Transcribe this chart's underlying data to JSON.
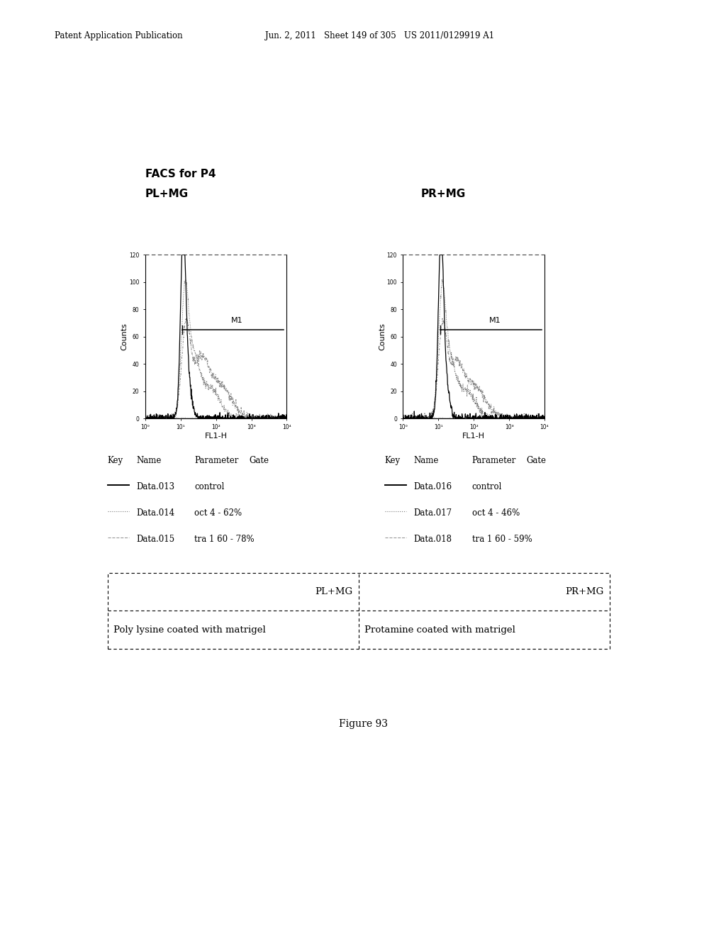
{
  "header_left": "Patent Application Publication",
  "header_mid": "Jun. 2, 2011   Sheet 149 of 305   US 2011/0129919 A1",
  "title_facs": "FACS for P4",
  "subtitle_left": "PL+MG",
  "subtitle_right": "PR+MG",
  "xlabel": "FL1-H",
  "ylabel": "Counts",
  "yticks": [
    0,
    20,
    40,
    60,
    80,
    100,
    120
  ],
  "xtick_labels": [
    "10⁰",
    "10¹",
    "10²",
    "10³",
    "10⁴"
  ],
  "m1_label": "M1",
  "legend_header": [
    "Key",
    "Name",
    "Parameter",
    "Gate"
  ],
  "legend_left": [
    [
      "Data.013",
      "control"
    ],
    [
      "Data.014",
      "oct 4 - 62%"
    ],
    [
      "Data.015",
      "tra 1 60 - 78%"
    ]
  ],
  "legend_right": [
    [
      "Data.016",
      "control"
    ],
    [
      "Data.017",
      "oct 4 - 46%"
    ],
    [
      "Data.018",
      "tra 1 60 - 59%"
    ]
  ],
  "table_headers": [
    "PL+MG",
    "PR+MG"
  ],
  "table_row": [
    "Poly lysine coated with matrigel",
    "Protamine coated with matrigel"
  ],
  "figure_caption": "Figure 93",
  "bg_color": "#ffffff",
  "text_color": "#000000"
}
